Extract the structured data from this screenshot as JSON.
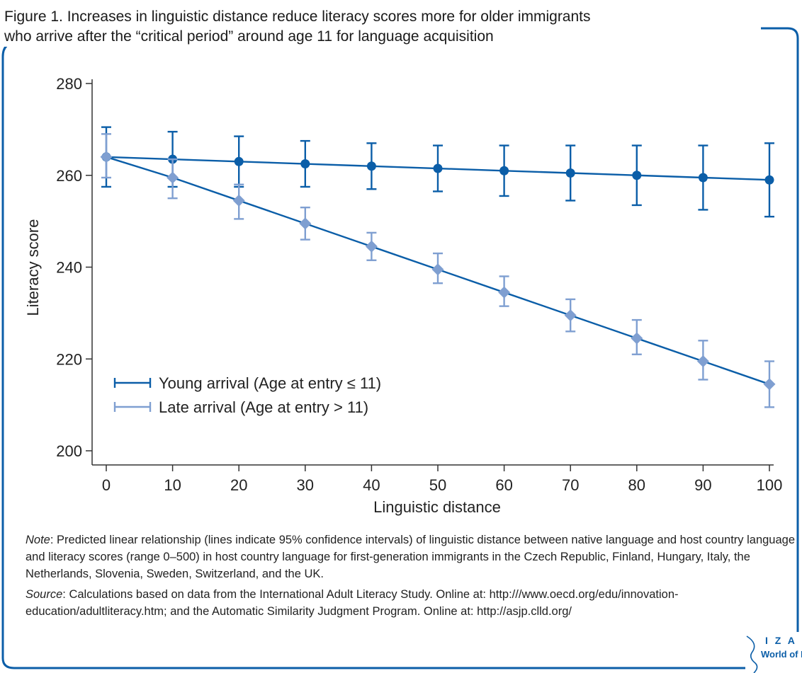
{
  "figure": {
    "title_line1": "Figure 1. Increases in linguistic distance reduce literacy scores more for older immigrants",
    "title_line2": "who arrive after the “critical period” around age 11 for language acquisition"
  },
  "notes": {
    "note_label": "Note",
    "note_text": ": Predicted linear relationship (lines indicate 95% confidence intervals) of linguistic distance between native language and host country language and literacy scores (range 0–500) in host country language for first-generation immigrants in the Czech Republic, Finland, Hungary, Italy, the Netherlands, Slovenia, Sweden, Switzerland, and the UK.",
    "source_label": "Source",
    "source_text": ": Calculations based on data from the International Adult Literacy Study. Online at: http:///www.oecd.org/edu/innovation-education/adultliteracy.htm; and the Automatic Similarity Judgment Program. Online at: http://asjp.clld.org/"
  },
  "logo": {
    "line1": "I Z A",
    "line2": "World of Labor"
  },
  "colors": {
    "accent": "#0b5ea8",
    "light": "#7f9fd1",
    "frame": "#0b5ea8"
  },
  "chart_data": {
    "type": "line",
    "xlabel": "Linguistic distance",
    "ylabel": "Literacy score",
    "xlim": [
      0,
      100
    ],
    "ylim": [
      200,
      280
    ],
    "xticks": [
      0,
      10,
      20,
      30,
      40,
      50,
      60,
      70,
      80,
      90,
      100
    ],
    "yticks": [
      200,
      220,
      240,
      260,
      280
    ],
    "legend_position": "bottom-left",
    "grid": false,
    "x": [
      0,
      10,
      20,
      30,
      40,
      50,
      60,
      70,
      80,
      90,
      100
    ],
    "series": [
      {
        "name": "Young arrival (Age at entry ≤ 11)",
        "marker": "circle",
        "color": "#0b5ea8",
        "values": [
          264,
          263.5,
          263,
          262.5,
          262,
          261.5,
          261,
          260.5,
          260,
          259.5,
          259
        ],
        "ci_low": [
          257.5,
          257.5,
          257.5,
          257.5,
          257,
          256.5,
          255.5,
          254.5,
          253.5,
          252.5,
          251
        ],
        "ci_high": [
          270.5,
          269.5,
          268.5,
          267.5,
          267,
          266.5,
          266.5,
          266.5,
          266.5,
          266.5,
          267
        ]
      },
      {
        "name": "Late arrival (Age at entry > 11)",
        "marker": "diamond",
        "color": "#7f9fd1",
        "values": [
          264,
          259.5,
          254.5,
          249.5,
          244.5,
          239.5,
          234.5,
          229.5,
          224.5,
          219.5,
          214.5
        ],
        "ci_low": [
          259.5,
          255,
          250.5,
          246,
          241.5,
          236.5,
          231.5,
          226,
          221,
          215.5,
          209.5
        ],
        "ci_high": [
          269,
          263.5,
          258,
          253,
          247.5,
          243,
          238,
          233,
          228.5,
          224,
          219.5
        ]
      }
    ]
  }
}
